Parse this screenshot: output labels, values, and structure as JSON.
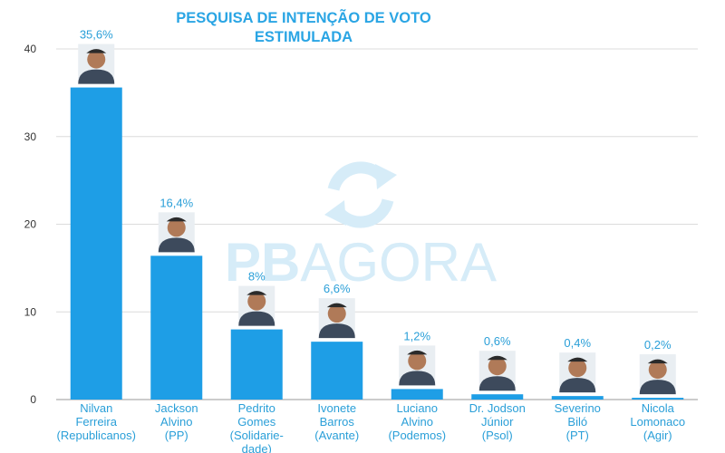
{
  "chart_data": {
    "type": "bar",
    "title_lines": [
      "PESQUISA DE INTENÇÃO DE VOTO",
      "ESTIMULADA"
    ],
    "ylim": [
      0,
      40
    ],
    "yticks": [
      0,
      10,
      20,
      30,
      40
    ],
    "grid": true,
    "bar_color": "#1e9ee6",
    "label_color": "#2a9fd8",
    "categories": [
      {
        "lines": [
          "Nilvan",
          "Ferreira",
          "(Republicanos)"
        ],
        "value": 35.6,
        "value_label": "35,6%"
      },
      {
        "lines": [
          "Jackson",
          "Alvino",
          "(PP)"
        ],
        "value": 16.4,
        "value_label": "16,4%"
      },
      {
        "lines": [
          "Pedrito",
          "Gomes",
          "(Solidarie-",
          "dade)"
        ],
        "value": 8,
        "value_label": "8%"
      },
      {
        "lines": [
          "Ivonete",
          "Barros",
          "(Avante)"
        ],
        "value": 6.6,
        "value_label": "6,6%"
      },
      {
        "lines": [
          "Luciano",
          "Alvino",
          "(Podemos)"
        ],
        "value": 1.2,
        "value_label": "1,2%"
      },
      {
        "lines": [
          "Dr. Jodson",
          "Júnior",
          "(Psol)"
        ],
        "value": 0.6,
        "value_label": "0,6%"
      },
      {
        "lines": [
          "Severino",
          "Biló",
          "(PT)"
        ],
        "value": 0.4,
        "value_label": "0,4%"
      },
      {
        "lines": [
          "Nicola",
          "Lomonaco",
          "(Agir)"
        ],
        "value": 0.2,
        "value_label": "0,2%"
      }
    ]
  },
  "watermark": {
    "text_bold": "PB",
    "text_light": "AGORA",
    "color": "#d6ecf8"
  }
}
